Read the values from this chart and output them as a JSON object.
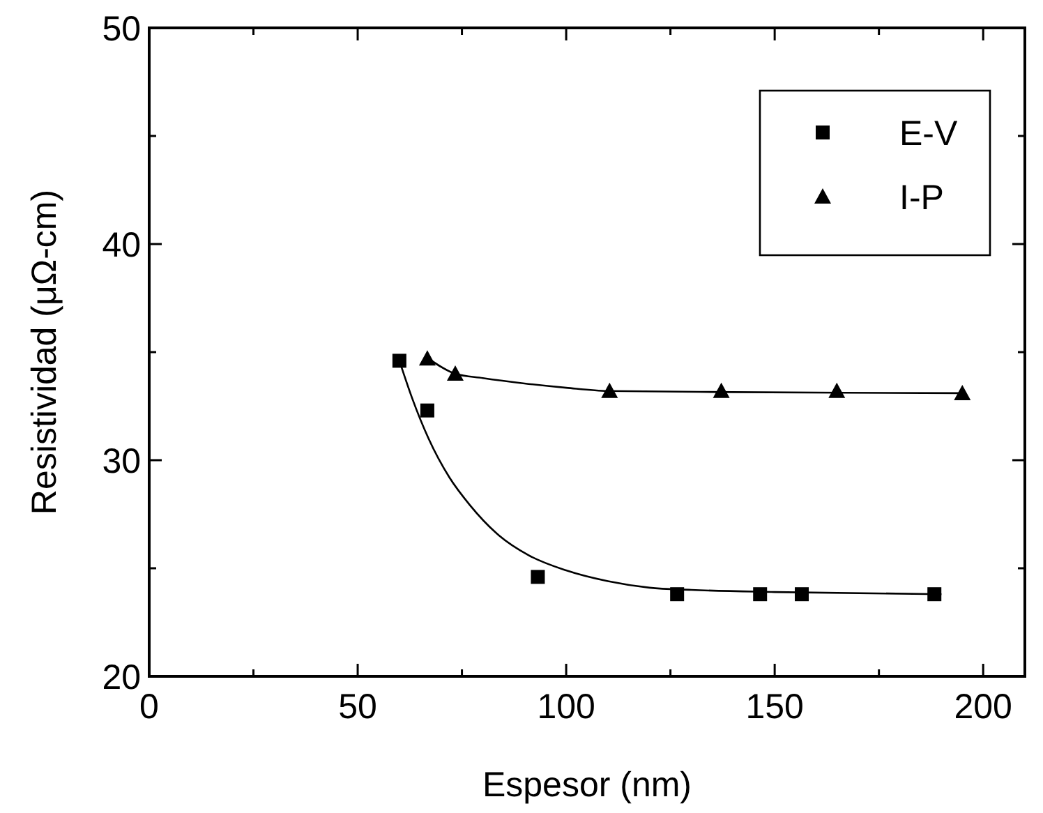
{
  "chart_data": {
    "type": "scatter",
    "xlabel": "Espesor (nm)",
    "ylabel": "Resistividad (μΩ-cm)",
    "xlim": [
      0,
      210
    ],
    "ylim": [
      20,
      50
    ],
    "xticks": [
      0,
      {
        "value": 25,
        "label": null
      },
      50,
      {
        "value": 75,
        "label": null
      },
      100,
      {
        "value": 125,
        "label": null
      },
      150,
      {
        "value": 175,
        "label": null
      },
      200
    ],
    "yticks": [
      20,
      {
        "value": 25,
        "label": null
      },
      30,
      {
        "value": 35,
        "label": null
      },
      40,
      {
        "value": 45,
        "label": null
      },
      50
    ],
    "grid": false,
    "legend": "top right",
    "series": [
      {
        "name": "E-V",
        "marker": "square",
        "color": "#000000",
        "x": [
          60,
          66.7,
          93.2,
          126.6,
          146.5,
          156.5,
          188.3
        ],
        "values": [
          34.6,
          32.3,
          24.6,
          23.8,
          23.8,
          23.8,
          23.8
        ]
      },
      {
        "name": "I-P",
        "marker": "triangle",
        "color": "#000000",
        "x": [
          66.7,
          73.4,
          110.4,
          137.2,
          164.9,
          195
        ],
        "values": [
          34.7,
          34.0,
          33.2,
          33.2,
          33.2,
          33.1
        ]
      },
      {
        "type": "line",
        "marker": "none",
        "line_style": "solid",
        "color": "#000000",
        "x": [
          60,
          63,
          67,
          72,
          77,
          84,
          91,
          100,
          110,
          120,
          130,
          150,
          190
        ],
        "values": [
          34.6,
          32.9,
          31.0,
          29.2,
          27.9,
          26.5,
          25.6,
          24.9,
          24.4,
          24.1,
          24.0,
          23.9,
          23.8
        ]
      },
      {
        "type": "line",
        "marker": "none",
        "line_style": "solid",
        "color": "#000000",
        "x": [
          67,
          73.4,
          80,
          90,
          100,
          110,
          140,
          195
        ],
        "values": [
          34.7,
          34.0,
          33.8,
          33.55,
          33.35,
          33.2,
          33.15,
          33.1
        ]
      }
    ]
  }
}
